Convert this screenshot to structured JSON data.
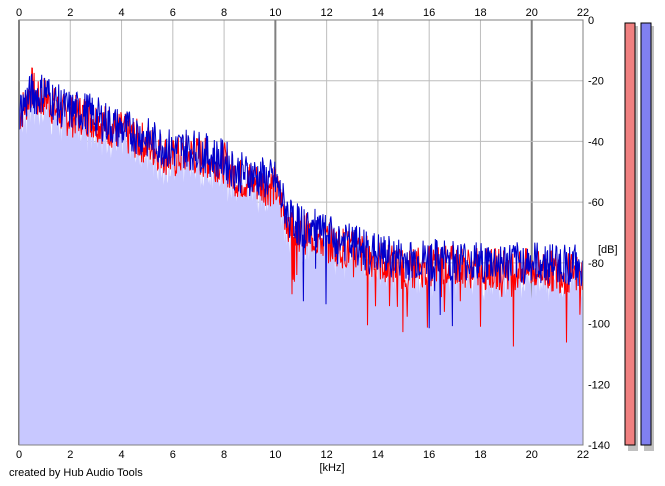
{
  "footer": {
    "credit": "created by Hub Audio Tools"
  },
  "colors": {
    "fill": "#c8c8ff",
    "series_a": "#ff0000",
    "series_b": "#0000cc",
    "grid": "#bdbdbd",
    "grid_major": "#808080",
    "meter_a": "#f08080",
    "meter_b": "#8080f0"
  },
  "meters": {
    "left_level": 1.0,
    "right_level": 1.0
  },
  "chart_data": {
    "type": "line",
    "title": "",
    "xlabel": "[kHz]",
    "ylabel": "[dB]",
    "xlim": [
      0,
      22
    ],
    "ylim": [
      -140,
      0
    ],
    "x_ticks": [
      0,
      2,
      4,
      6,
      8,
      10,
      12,
      14,
      16,
      18,
      20,
      22
    ],
    "y_ticks": [
      0,
      -20,
      -40,
      -60,
      -80,
      -100,
      -120,
      -140
    ],
    "grid": true,
    "legend": "none",
    "series": [
      {
        "color": "#ff0000",
        "x": [
          0,
          0.25,
          0.5,
          0.75,
          1,
          1.5,
          2,
          2.5,
          3,
          3.5,
          4,
          4.5,
          5,
          5.5,
          6,
          6.5,
          7,
          7.5,
          8,
          8.5,
          9,
          9.5,
          10,
          10.3,
          10.6,
          11,
          11.5,
          12,
          13,
          14,
          15,
          16,
          17,
          18,
          19,
          20,
          21,
          22
        ],
        "values": [
          -31,
          -28,
          -22,
          -27,
          -25,
          -30,
          -32,
          -31,
          -33,
          -35,
          -37,
          -39,
          -41,
          -43,
          -46,
          -44,
          -45,
          -46,
          -47,
          -52,
          -53,
          -54,
          -55,
          -62,
          -68,
          -70,
          -71,
          -73,
          -76,
          -79,
          -82,
          -81,
          -81,
          -82,
          -82,
          -82,
          -83,
          -84
        ]
      },
      {
        "color": "#0000cc",
        "x": [
          0,
          0.25,
          0.5,
          0.75,
          1,
          1.5,
          2,
          2.5,
          3,
          3.5,
          4,
          4.5,
          5,
          5.5,
          6,
          6.5,
          7,
          7.5,
          8,
          8.5,
          9,
          9.5,
          10,
          10.3,
          10.6,
          11,
          11.5,
          12,
          13,
          14,
          15,
          16,
          17,
          18,
          19,
          20,
          21,
          22
        ],
        "values": [
          -30,
          -27,
          -24,
          -25,
          -23,
          -28,
          -30,
          -30,
          -32,
          -34,
          -36,
          -37,
          -39,
          -41,
          -43,
          -42,
          -43,
          -45,
          -46,
          -50,
          -51,
          -52,
          -53,
          -60,
          -66,
          -68,
          -69,
          -71,
          -74,
          -77,
          -79,
          -79,
          -79,
          -80,
          -80,
          -80,
          -80,
          -81
        ]
      }
    ],
    "fill_to": -140
  }
}
